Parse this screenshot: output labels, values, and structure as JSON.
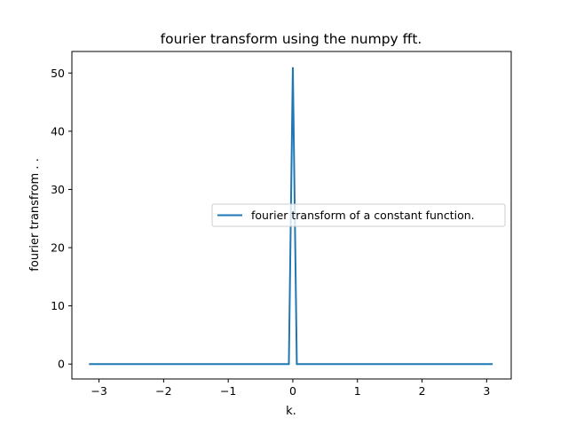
{
  "chart_data": {
    "type": "line",
    "title": "fourier transform using the numpy fft.",
    "xlabel": "k.",
    "ylabel": "fourier transfrom . .",
    "xlim": [
      -3.42,
      3.38
    ],
    "ylim": [
      -2.56,
      53.7
    ],
    "xticks": [
      -3,
      -2,
      -1,
      0,
      1,
      2,
      3
    ],
    "xtick_labels": [
      "−3",
      "−2",
      "−1",
      "0",
      "1",
      "2",
      "3"
    ],
    "yticks": [
      0,
      10,
      20,
      30,
      40,
      50
    ],
    "ytick_labels": [
      "0",
      "10",
      "20",
      "30",
      "40",
      "50"
    ],
    "grid": false,
    "legend_position": "center-right",
    "series": [
      {
        "name": "fourier transform of a constant function.",
        "color": "#1f77b4",
        "x": [
          -3.1416,
          -0.0616,
          0.0,
          0.0616,
          3.08
        ],
        "y": [
          0,
          0,
          51.0,
          0,
          0
        ]
      }
    ]
  }
}
